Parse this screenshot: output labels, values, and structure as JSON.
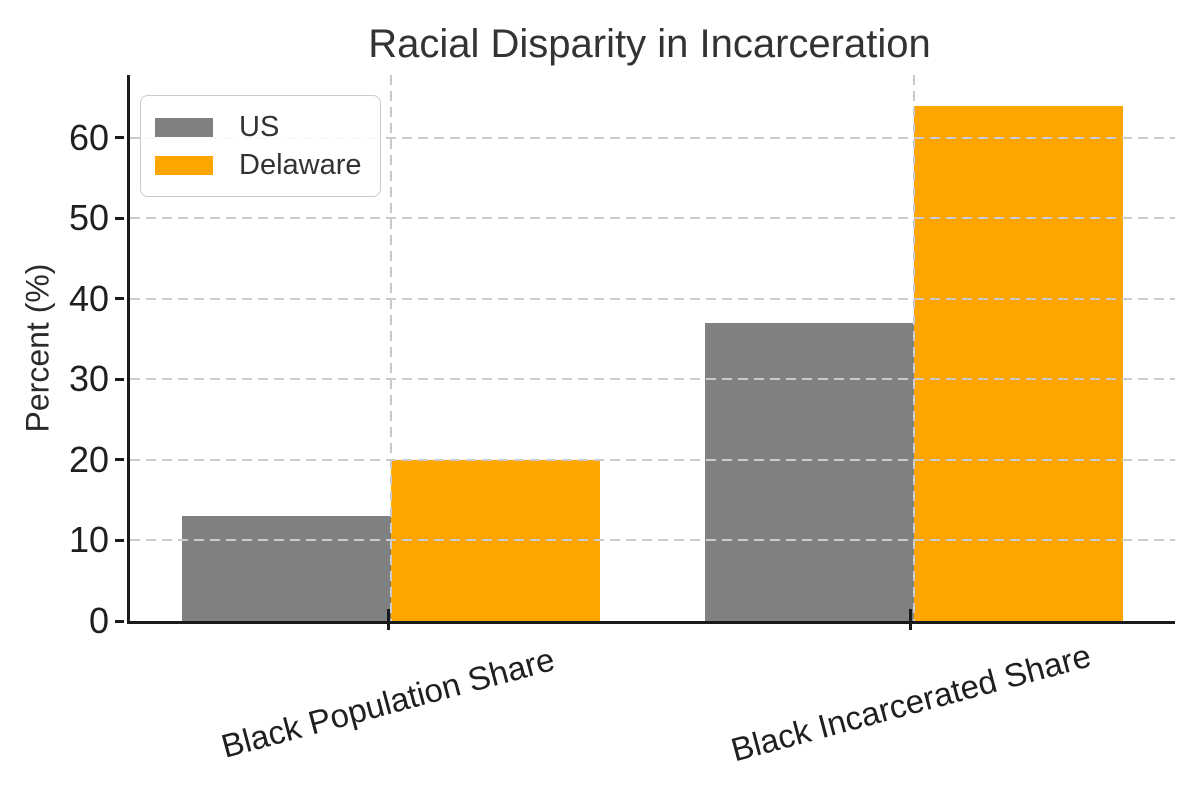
{
  "chart_data": {
    "type": "bar",
    "title": "Racial Disparity in Incarceration",
    "xlabel": "",
    "ylabel": "Percent (%)",
    "categories": [
      "Black Population Share",
      "Black Incarcerated Share"
    ],
    "series": [
      {
        "name": "US",
        "color": "#808080",
        "values": [
          13,
          37
        ]
      },
      {
        "name": "Delaware",
        "color": "#FFA500",
        "values": [
          20,
          64
        ]
      }
    ],
    "yticks": [
      0,
      10,
      20,
      30,
      40,
      50,
      60
    ],
    "ylim": [
      0,
      67.8
    ],
    "xlim": [
      -0.5,
      1.5
    ],
    "bar_width": 0.4,
    "grid": "dashed, drawn above bars",
    "grid_color": "#cccccc",
    "spine_color": "#1a1a1a",
    "text_color": "#333333",
    "background": "#ffffff",
    "legend_position": "upper left",
    "x_tick_rotation_deg": 15
  }
}
